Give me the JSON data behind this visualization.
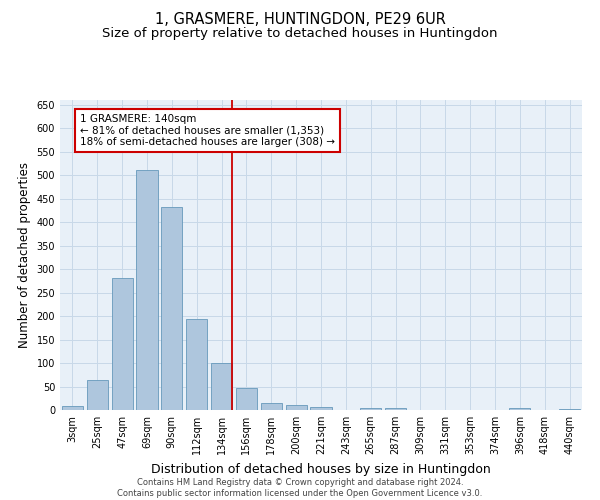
{
  "title": "1, GRASMERE, HUNTINGDON, PE29 6UR",
  "subtitle": "Size of property relative to detached houses in Huntingdon",
  "xlabel": "Distribution of detached houses by size in Huntingdon",
  "ylabel": "Number of detached properties",
  "footer_line1": "Contains HM Land Registry data © Crown copyright and database right 2024.",
  "footer_line2": "Contains public sector information licensed under the Open Government Licence v3.0.",
  "categories": [
    "3sqm",
    "25sqm",
    "47sqm",
    "69sqm",
    "90sqm",
    "112sqm",
    "134sqm",
    "156sqm",
    "178sqm",
    "200sqm",
    "221sqm",
    "243sqm",
    "265sqm",
    "287sqm",
    "309sqm",
    "331sqm",
    "353sqm",
    "374sqm",
    "396sqm",
    "418sqm",
    "440sqm"
  ],
  "values": [
    8,
    63,
    280,
    510,
    433,
    193,
    101,
    46,
    15,
    10,
    7,
    1,
    5,
    4,
    1,
    0,
    0,
    0,
    5,
    0,
    3
  ],
  "bar_color": "#aec6dd",
  "bar_edge_color": "#6699bb",
  "grid_color": "#c8d8e8",
  "bg_color": "#e8f0f8",
  "vline_color": "#cc0000",
  "annotation_text": "1 GRASMERE: 140sqm\n← 81% of detached houses are smaller (1,353)\n18% of semi-detached houses are larger (308) →",
  "annotation_box_color": "#cc0000",
  "ylim": [
    0,
    660
  ],
  "yticks": [
    0,
    50,
    100,
    150,
    200,
    250,
    300,
    350,
    400,
    450,
    500,
    550,
    600,
    650
  ],
  "title_fontsize": 10.5,
  "subtitle_fontsize": 9.5,
  "ylabel_fontsize": 8.5,
  "xlabel_fontsize": 9,
  "tick_fontsize": 7,
  "annotation_fontsize": 7.5,
  "footer_fontsize": 6
}
